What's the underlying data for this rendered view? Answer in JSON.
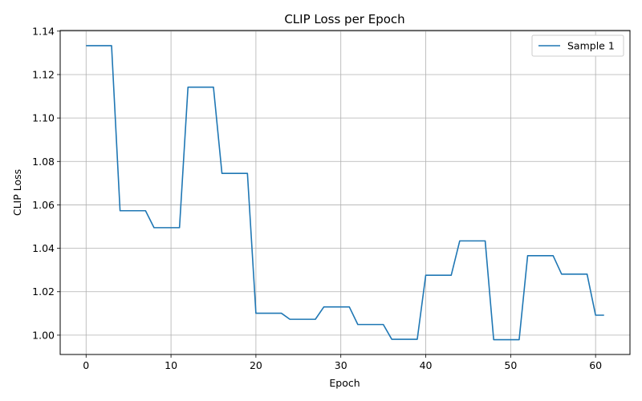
{
  "chart_data": {
    "type": "line",
    "title": "CLIP Loss per Epoch",
    "xlabel": "Epoch",
    "ylabel": "CLIP Loss",
    "xlim": [
      -3.05,
      64.05
    ],
    "ylim": [
      0.9911,
      1.1403
    ],
    "xticks": [
      0,
      10,
      20,
      30,
      40,
      50,
      60
    ],
    "yticks": [
      1.0,
      1.02,
      1.04,
      1.06,
      1.08,
      1.1,
      1.12,
      1.14
    ],
    "ytick_labels": [
      "1.00",
      "1.02",
      "1.04",
      "1.06",
      "1.08",
      "1.10",
      "1.12",
      "1.14"
    ],
    "grid": true,
    "legend_position": "top-right",
    "series": [
      {
        "name": "Sample 1",
        "color": "#1f77b4",
        "x": [
          0,
          1,
          2,
          3,
          4,
          5,
          6,
          7,
          8,
          9,
          10,
          11,
          12,
          13,
          14,
          15,
          16,
          17,
          18,
          19,
          20,
          21,
          22,
          23,
          24,
          25,
          26,
          27,
          28,
          29,
          30,
          31,
          32,
          33,
          34,
          35,
          36,
          37,
          38,
          39,
          40,
          41,
          42,
          43,
          44,
          45,
          46,
          47,
          48,
          49,
          50,
          51,
          52,
          53,
          54,
          55,
          56,
          57,
          58,
          59,
          60,
          61
        ],
        "values": [
          1.1333,
          1.1333,
          1.1333,
          1.1333,
          1.0573,
          1.0573,
          1.0573,
          1.0573,
          1.0495,
          1.0495,
          1.0495,
          1.0495,
          1.1142,
          1.1142,
          1.1142,
          1.1142,
          1.0745,
          1.0745,
          1.0745,
          1.0745,
          1.0101,
          1.0101,
          1.0101,
          1.0101,
          1.0073,
          1.0073,
          1.0073,
          1.0073,
          1.013,
          1.013,
          1.013,
          1.013,
          1.0049,
          1.0049,
          1.0049,
          1.0049,
          0.9981,
          0.9981,
          0.9981,
          0.9981,
          1.0276,
          1.0276,
          1.0276,
          1.0276,
          1.0434,
          1.0434,
          1.0434,
          1.0434,
          0.9979,
          0.9979,
          0.9979,
          0.9979,
          1.0366,
          1.0366,
          1.0366,
          1.0366,
          1.0281,
          1.0281,
          1.0281,
          1.0281,
          1.0092,
          1.0092
        ]
      }
    ]
  }
}
